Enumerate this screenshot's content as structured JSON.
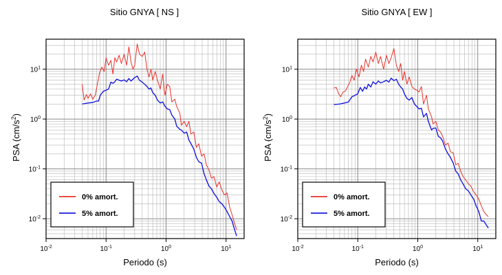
{
  "chart_data": [
    {
      "type": "line",
      "title": "Sitio GNYA [ NS ]",
      "xlabel": "Periodo (s)",
      "ylabel": "PSA (cm/s2)",
      "ylabel_base": "PSA (cm/s",
      "ylabel_sup": "2",
      "ylabel_end": ")",
      "xscale": "log",
      "yscale": "log",
      "xlim": [
        0.01,
        20
      ],
      "ylim": [
        0.004,
        40
      ],
      "x_ticks": [
        {
          "base": "10",
          "exp": "-2",
          "value": 0.01
        },
        {
          "base": "10",
          "exp": "-1",
          "value": 0.1
        },
        {
          "base": "10",
          "exp": "0",
          "value": 1
        },
        {
          "base": "10",
          "exp": "1",
          "value": 10
        }
      ],
      "y_ticks": [
        {
          "base": "10",
          "exp": "-2",
          "value": 0.01
        },
        {
          "base": "10",
          "exp": "-1",
          "value": 0.1
        },
        {
          "base": "10",
          "exp": "0",
          "value": 1
        },
        {
          "base": "10",
          "exp": "1",
          "value": 10
        }
      ],
      "grid": true,
      "legend_position": "bottom-left",
      "series": [
        {
          "name": "0% amort.",
          "color": "#e8302a",
          "points": [
            [
              0.04,
              5.0
            ],
            [
              0.043,
              2.4
            ],
            [
              0.047,
              3.1
            ],
            [
              0.05,
              2.6
            ],
            [
              0.055,
              3.2
            ],
            [
              0.06,
              2.5
            ],
            [
              0.066,
              3.0
            ],
            [
              0.072,
              5.2
            ],
            [
              0.078,
              8.5
            ],
            [
              0.085,
              11
            ],
            [
              0.093,
              9
            ],
            [
              0.1,
              17
            ],
            [
              0.11,
              12
            ],
            [
              0.12,
              15
            ],
            [
              0.13,
              8
            ],
            [
              0.14,
              17
            ],
            [
              0.15,
              14
            ],
            [
              0.165,
              19
            ],
            [
              0.18,
              13
            ],
            [
              0.2,
              20
            ],
            [
              0.22,
              12
            ],
            [
              0.24,
              28
            ],
            [
              0.26,
              14
            ],
            [
              0.28,
              10
            ],
            [
              0.3,
              12
            ],
            [
              0.33,
              32
            ],
            [
              0.36,
              20
            ],
            [
              0.4,
              18
            ],
            [
              0.44,
              22
            ],
            [
              0.48,
              10
            ],
            [
              0.52,
              7
            ],
            [
              0.56,
              10
            ],
            [
              0.6,
              6
            ],
            [
              0.66,
              9
            ],
            [
              0.72,
              6
            ],
            [
              0.8,
              4
            ],
            [
              0.88,
              8
            ],
            [
              0.96,
              3
            ],
            [
              1.05,
              5
            ],
            [
              1.15,
              4.5
            ],
            [
              1.25,
              2.2
            ],
            [
              1.4,
              2.5
            ],
            [
              1.5,
              1.8
            ],
            [
              1.7,
              1.3
            ],
            [
              1.8,
              0.75
            ],
            [
              2.0,
              0.9
            ],
            [
              2.2,
              0.7
            ],
            [
              2.4,
              0.9
            ],
            [
              2.6,
              0.5
            ],
            [
              2.9,
              0.55
            ],
            [
              3.2,
              0.27
            ],
            [
              3.5,
              0.32
            ],
            [
              3.9,
              0.18
            ],
            [
              4.3,
              0.2
            ],
            [
              4.7,
              0.12
            ],
            [
              5.2,
              0.095
            ],
            [
              5.7,
              0.065
            ],
            [
              6.3,
              0.07
            ],
            [
              7.0,
              0.043
            ],
            [
              7.7,
              0.055
            ],
            [
              8.5,
              0.038
            ],
            [
              9.4,
              0.03
            ],
            [
              10.4,
              0.033
            ],
            [
              11.5,
              0.017
            ],
            [
              12.6,
              0.012
            ],
            [
              13.9,
              0.008
            ],
            [
              15.0,
              0.006
            ]
          ]
        },
        {
          "name": "5% amort.",
          "color": "#1a1adc",
          "points": [
            [
              0.04,
              2.0
            ],
            [
              0.05,
              2.1
            ],
            [
              0.06,
              2.15
            ],
            [
              0.07,
              2.3
            ],
            [
              0.075,
              2.3
            ],
            [
              0.08,
              3.0
            ],
            [
              0.09,
              3.6
            ],
            [
              0.1,
              3.8
            ],
            [
              0.11,
              4.0
            ],
            [
              0.12,
              5.5
            ],
            [
              0.13,
              5.2
            ],
            [
              0.14,
              5.6
            ],
            [
              0.15,
              6.3
            ],
            [
              0.165,
              6.0
            ],
            [
              0.18,
              5.8
            ],
            [
              0.2,
              6.1
            ],
            [
              0.22,
              5.6
            ],
            [
              0.24,
              6.5
            ],
            [
              0.26,
              5.8
            ],
            [
              0.3,
              6.8
            ],
            [
              0.33,
              7.3
            ],
            [
              0.36,
              6.0
            ],
            [
              0.4,
              5.5
            ],
            [
              0.44,
              5.0
            ],
            [
              0.48,
              4.5
            ],
            [
              0.52,
              4.0
            ],
            [
              0.56,
              4.2
            ],
            [
              0.6,
              3.4
            ],
            [
              0.66,
              3.0
            ],
            [
              0.72,
              2.4
            ],
            [
              0.8,
              2.1
            ],
            [
              0.88,
              2.2
            ],
            [
              0.96,
              1.8
            ],
            [
              1.05,
              1.6
            ],
            [
              1.15,
              1.55
            ],
            [
              1.25,
              1.2
            ],
            [
              1.4,
              1.0
            ],
            [
              1.5,
              0.72
            ],
            [
              1.7,
              0.62
            ],
            [
              1.8,
              0.6
            ],
            [
              2.0,
              0.52
            ],
            [
              2.2,
              0.55
            ],
            [
              2.4,
              0.38
            ],
            [
              2.6,
              0.32
            ],
            [
              2.9,
              0.25
            ],
            [
              3.2,
              0.17
            ],
            [
              3.5,
              0.14
            ],
            [
              3.9,
              0.13
            ],
            [
              4.3,
              0.08
            ],
            [
              4.7,
              0.06
            ],
            [
              5.2,
              0.045
            ],
            [
              5.7,
              0.04
            ],
            [
              6.3,
              0.032
            ],
            [
              7.0,
              0.027
            ],
            [
              7.7,
              0.022
            ],
            [
              8.5,
              0.02
            ],
            [
              9.4,
              0.017
            ],
            [
              10.4,
              0.014
            ],
            [
              11.5,
              0.011
            ],
            [
              12.6,
              0.009
            ],
            [
              13.9,
              0.006
            ],
            [
              15.0,
              0.0045
            ]
          ]
        }
      ]
    },
    {
      "type": "line",
      "title": "Sitio GNYA [ EW ]",
      "xlabel": "Periodo (s)",
      "ylabel": "PSA (cm/s2)",
      "ylabel_base": "PSA (cm/s",
      "ylabel_sup": "2",
      "ylabel_end": ")",
      "xscale": "log",
      "yscale": "log",
      "xlim": [
        0.01,
        20
      ],
      "ylim": [
        0.004,
        40
      ],
      "x_ticks": [
        {
          "base": "10",
          "exp": "-2",
          "value": 0.01
        },
        {
          "base": "10",
          "exp": "-1",
          "value": 0.1
        },
        {
          "base": "10",
          "exp": "0",
          "value": 1
        },
        {
          "base": "10",
          "exp": "1",
          "value": 10
        }
      ],
      "y_ticks": [
        {
          "base": "10",
          "exp": "-2",
          "value": 0.01
        },
        {
          "base": "10",
          "exp": "-1",
          "value": 0.1
        },
        {
          "base": "10",
          "exp": "0",
          "value": 1
        },
        {
          "base": "10",
          "exp": "1",
          "value": 10
        }
      ],
      "grid": true,
      "legend_position": "bottom-left",
      "series": [
        {
          "name": "0% amort.",
          "color": "#e8302a",
          "points": [
            [
              0.04,
              4.2
            ],
            [
              0.044,
              4.3
            ],
            [
              0.048,
              3.2
            ],
            [
              0.052,
              2.8
            ],
            [
              0.057,
              3.5
            ],
            [
              0.062,
              3.6
            ],
            [
              0.068,
              4.5
            ],
            [
              0.074,
              5.5
            ],
            [
              0.08,
              7.5
            ],
            [
              0.087,
              6.0
            ],
            [
              0.095,
              10
            ],
            [
              0.105,
              7
            ],
            [
              0.115,
              12
            ],
            [
              0.125,
              9
            ],
            [
              0.135,
              16
            ],
            [
              0.15,
              11
            ],
            [
              0.165,
              18
            ],
            [
              0.18,
              14
            ],
            [
              0.2,
              22
            ],
            [
              0.22,
              13
            ],
            [
              0.24,
              18
            ],
            [
              0.27,
              10
            ],
            [
              0.3,
              19
            ],
            [
              0.33,
              13
            ],
            [
              0.36,
              17
            ],
            [
              0.4,
              26
            ],
            [
              0.44,
              12
            ],
            [
              0.48,
              9
            ],
            [
              0.52,
              13
            ],
            [
              0.56,
              6
            ],
            [
              0.6,
              9
            ],
            [
              0.66,
              5
            ],
            [
              0.72,
              7
            ],
            [
              0.8,
              4.5
            ],
            [
              0.88,
              4.0
            ],
            [
              0.96,
              3.8
            ],
            [
              1.05,
              3.5
            ],
            [
              1.15,
              4.5
            ],
            [
              1.25,
              2.0
            ],
            [
              1.4,
              3.0
            ],
            [
              1.5,
              1.6
            ],
            [
              1.7,
              1.1
            ],
            [
              1.8,
              0.8
            ],
            [
              2.0,
              0.9
            ],
            [
              2.2,
              0.6
            ],
            [
              2.4,
              0.55
            ],
            [
              2.6,
              0.45
            ],
            [
              2.9,
              0.3
            ],
            [
              3.2,
              0.33
            ],
            [
              3.5,
              0.22
            ],
            [
              3.9,
              0.21
            ],
            [
              4.3,
              0.12
            ],
            [
              4.7,
              0.13
            ],
            [
              5.2,
              0.09
            ],
            [
              5.7,
              0.07
            ],
            [
              6.3,
              0.06
            ],
            [
              7.0,
              0.05
            ],
            [
              7.7,
              0.045
            ],
            [
              8.5,
              0.035
            ],
            [
              9.4,
              0.03
            ],
            [
              10.4,
              0.025
            ],
            [
              11.5,
              0.018
            ],
            [
              12.6,
              0.014
            ],
            [
              13.9,
              0.012
            ],
            [
              15.0,
              0.011
            ]
          ]
        },
        {
          "name": "5% amort.",
          "color": "#1a1adc",
          "points": [
            [
              0.04,
              1.95
            ],
            [
              0.05,
              2.0
            ],
            [
              0.06,
              2.1
            ],
            [
              0.07,
              2.2
            ],
            [
              0.08,
              2.8
            ],
            [
              0.09,
              3.0
            ],
            [
              0.1,
              3.2
            ],
            [
              0.11,
              4.3
            ],
            [
              0.12,
              3.6
            ],
            [
              0.13,
              4.4
            ],
            [
              0.14,
              4.0
            ],
            [
              0.15,
              5.0
            ],
            [
              0.165,
              4.4
            ],
            [
              0.18,
              5.6
            ],
            [
              0.2,
              5.0
            ],
            [
              0.22,
              5.8
            ],
            [
              0.24,
              5.3
            ],
            [
              0.27,
              5.6
            ],
            [
              0.3,
              6.0
            ],
            [
              0.33,
              5.5
            ],
            [
              0.36,
              6.6
            ],
            [
              0.4,
              5.9
            ],
            [
              0.44,
              6.3
            ],
            [
              0.48,
              5.0
            ],
            [
              0.52,
              4.4
            ],
            [
              0.56,
              4.0
            ],
            [
              0.6,
              3.2
            ],
            [
              0.66,
              2.6
            ],
            [
              0.72,
              2.4
            ],
            [
              0.8,
              2.7
            ],
            [
              0.88,
              2.0
            ],
            [
              0.96,
              1.8
            ],
            [
              1.05,
              1.6
            ],
            [
              1.15,
              1.65
            ],
            [
              1.25,
              1.1
            ],
            [
              1.4,
              1.3
            ],
            [
              1.5,
              0.9
            ],
            [
              1.7,
              0.6
            ],
            [
              1.8,
              0.65
            ],
            [
              2.0,
              0.66
            ],
            [
              2.2,
              0.45
            ],
            [
              2.4,
              0.42
            ],
            [
              2.6,
              0.36
            ],
            [
              2.9,
              0.25
            ],
            [
              3.2,
              0.2
            ],
            [
              3.5,
              0.17
            ],
            [
              3.9,
              0.13
            ],
            [
              4.3,
              0.09
            ],
            [
              4.7,
              0.08
            ],
            [
              5.2,
              0.06
            ],
            [
              5.7,
              0.05
            ],
            [
              6.3,
              0.04
            ],
            [
              7.0,
              0.036
            ],
            [
              7.7,
              0.03
            ],
            [
              8.5,
              0.025
            ],
            [
              9.4,
              0.018
            ],
            [
              10.4,
              0.014
            ],
            [
              11.5,
              0.009
            ],
            [
              12.6,
              0.009
            ],
            [
              13.9,
              0.0075
            ],
            [
              15.0,
              0.0065
            ]
          ]
        }
      ]
    }
  ]
}
